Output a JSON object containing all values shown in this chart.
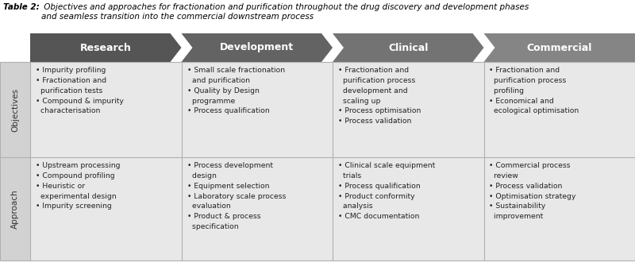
{
  "title_bold": "Table 2:",
  "title_rest": " Objectives and approaches for fractionation and purification throughout the drug discovery and development phases\nand seamless transition into the commercial downstream process",
  "headers": [
    "Research",
    "Development",
    "Clinical",
    "Commercial"
  ],
  "row_labels": [
    "Objectives",
    "Approach"
  ],
  "arrow_colors": [
    "#555555",
    "#636363",
    "#737373",
    "#858585"
  ],
  "cell_bg": "#e8e8e8",
  "label_bg": "#d2d2d2",
  "grid_color": "#b0b0b0",
  "objectives": [
    "• Impurity profiling\n• Fractionation and\n  purification tests\n• Compound & impurity\n  characterisation",
    "• Small scale fractionation\n  and purification\n• Quality by Design\n  programme\n• Process qualification",
    "• Fractionation and\n  purification process\n  development and\n  scaling up\n• Process optimisation\n• Process validation",
    "• Fractionation and\n  purification process\n  profiling\n• Economical and\n  ecological optimisation"
  ],
  "approach": [
    "• Upstream processing\n• Compound profiling\n• Heuristic or\n  experimental design\n• Impurity screening",
    "• Process development\n  design\n• Equipment selection\n• Laboratory scale process\n  evaluation\n• Product & process\n  specification",
    "• Clinical scale equipment\n  trials\n• Process qualification\n• Product conformity\n  analysis\n• CMC documentation",
    "• Commercial process\n  review\n• Process validation\n• Optimisation strategy\n• Sustainability\n  improvement"
  ],
  "fig_width": 8.0,
  "fig_height": 3.45,
  "dpi": 100
}
